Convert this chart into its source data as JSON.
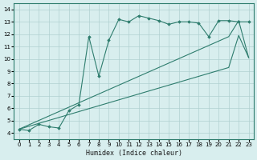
{
  "xlabel": "Humidex (Indice chaleur)",
  "xlim": [
    -0.5,
    23.5
  ],
  "ylim": [
    3.5,
    14.5
  ],
  "xticks": [
    0,
    1,
    2,
    3,
    4,
    5,
    6,
    7,
    8,
    9,
    10,
    11,
    12,
    13,
    14,
    15,
    16,
    17,
    18,
    19,
    20,
    21,
    22,
    23
  ],
  "yticks": [
    4,
    5,
    6,
    7,
    8,
    9,
    10,
    11,
    12,
    13,
    14
  ],
  "bg_color": "#d8eeee",
  "line_color": "#2e7d6e",
  "grid_color": "#b0d0d0",
  "series0": {
    "x": [
      0,
      1,
      2,
      3,
      4,
      5,
      6,
      7,
      8,
      9,
      10,
      11,
      12,
      13,
      14,
      15,
      16,
      17,
      18,
      19,
      20,
      21,
      22,
      23
    ],
    "y": [
      4.3,
      4.2,
      4.7,
      4.5,
      4.4,
      5.8,
      6.3,
      11.8,
      8.6,
      11.5,
      13.2,
      13.0,
      13.5,
      13.3,
      13.1,
      12.8,
      13.0,
      13.0,
      12.9,
      11.8,
      13.1,
      13.1,
      13.0,
      13.0
    ]
  },
  "series1": {
    "x": [
      0,
      21,
      22,
      23
    ],
    "y": [
      4.3,
      11.8,
      13.1,
      10.1
    ]
  },
  "series2": {
    "x": [
      0,
      21,
      22,
      23
    ],
    "y": [
      4.3,
      9.3,
      11.9,
      10.1
    ]
  }
}
